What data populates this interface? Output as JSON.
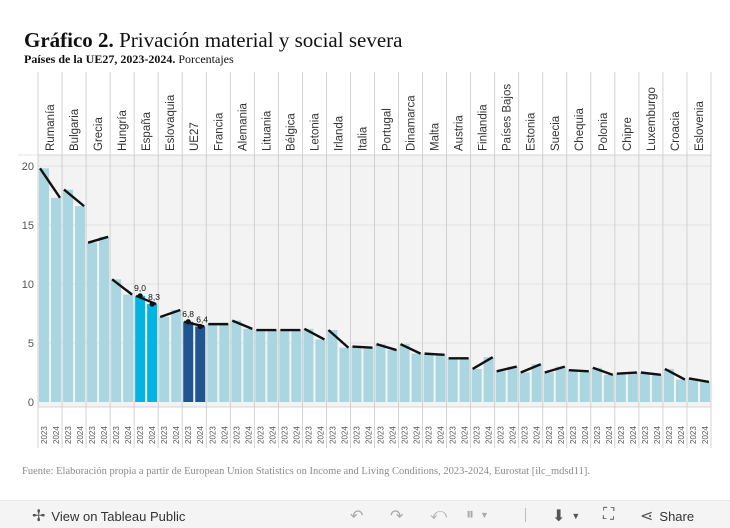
{
  "title": {
    "bold": "Gráfico 2.",
    "rest": "Privación material y social severa"
  },
  "subtitle": {
    "bold": "Países de la UE27, 2023-2024.",
    "rest": "Porcentajes"
  },
  "source": "Fuente: Elaboración propia a partir de European Union Statistics on Income and Living Conditions, 2023-2024, Eurostat [ilc_mdsd11].",
  "chart_data": {
    "type": "bar",
    "categories": [
      "Rumanía",
      "Bulgaria",
      "Grecia",
      "Hungría",
      "España",
      "Eslovaquia",
      "UE27",
      "Francia",
      "Alemania",
      "Lituania",
      "Bélgica",
      "Letonia",
      "Irlanda",
      "Italia",
      "Portugal",
      "Dinamarca",
      "Malta",
      "Austria",
      "Finlandia",
      "Países Bajos",
      "Estonia",
      "Suecia",
      "Chequia",
      "Polonia",
      "Chipre",
      "Luxemburgo",
      "Croacia",
      "Eslovenia"
    ],
    "sub_categories": [
      "2023",
      "2024"
    ],
    "series": [
      {
        "name": "2023",
        "values": [
          19.8,
          18.0,
          13.5,
          10.4,
          9.0,
          7.2,
          6.8,
          6.6,
          6.9,
          6.1,
          6.1,
          6.2,
          6.1,
          4.7,
          4.9,
          4.9,
          4.1,
          3.7,
          2.8,
          2.6,
          2.5,
          2.5,
          2.7,
          2.9,
          2.4,
          2.5,
          2.8,
          2.0
        ]
      },
      {
        "name": "2024",
        "values": [
          17.3,
          16.6,
          14.0,
          9.1,
          8.3,
          7.8,
          6.4,
          6.6,
          6.2,
          6.1,
          6.1,
          5.3,
          4.6,
          4.6,
          4.4,
          4.1,
          4.0,
          3.7,
          3.8,
          3.0,
          3.2,
          3.0,
          2.6,
          2.3,
          2.5,
          2.3,
          1.9,
          1.7
        ]
      }
    ],
    "highlight": {
      "España": "#00b5e2",
      "UE27": "#1f5591"
    },
    "default_color": "#a9d6e1",
    "labels": [
      {
        "category": "España",
        "year": "2023",
        "text": "9,0"
      },
      {
        "category": "España",
        "year": "2024",
        "text": "8,3"
      },
      {
        "category": "UE27",
        "year": "2023",
        "text": "6,8"
      },
      {
        "category": "UE27",
        "year": "2024",
        "text": "6,4"
      }
    ],
    "y_ticks": [
      0,
      5,
      10,
      15,
      20
    ],
    "ylim": [
      0,
      20
    ],
    "xlabel": "",
    "ylabel": "",
    "grid": true
  },
  "toolbar": {
    "view_label": "View on Tableau Public",
    "share_label": "Share"
  }
}
